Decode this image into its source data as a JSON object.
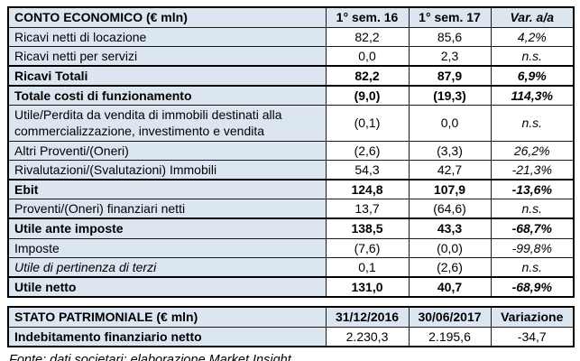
{
  "colors": {
    "header_bg": "#dce6f1",
    "label_bg": "#dce6f1",
    "value_bg": "#ffffff",
    "border": "#000000",
    "text": "#000000"
  },
  "tables": [
    {
      "title": "CONTO ECONOMICO (€ mln)",
      "columns": [
        "1° sem. 16",
        "1° sem. 17",
        "Var. a/a"
      ],
      "rows": [
        {
          "label": "Ricavi netti di locazione",
          "v1": "82,2",
          "v2": "85,6",
          "var": "4,2%",
          "style": "normal"
        },
        {
          "label": "Ricavi netti per servizi",
          "v1": "0,0",
          "v2": "2,3",
          "var": "n.s.",
          "style": "normal"
        },
        {
          "label": "Ricavi Totali",
          "v1": "82,2",
          "v2": "87,9",
          "var": "6,9%",
          "style": "total"
        },
        {
          "label": "Totale costi di funzionamento",
          "v1": "(9,0)",
          "v2": "(19,3)",
          "var": "114,3%",
          "style": "total"
        },
        {
          "label": "Utile/Perdita da vendita di immobili destinati alla commercializzazione, investimento e vendita",
          "v1": "(0,1)",
          "v2": "0,0",
          "var": "n.s.",
          "style": "normal"
        },
        {
          "label": "Altri Proventi/(Oneri)",
          "v1": "(2,6)",
          "v2": "(3,3)",
          "var": "26,2%",
          "style": "normal"
        },
        {
          "label": "Rivalutazioni/(Svalutazioni) Immobili",
          "v1": "54,3",
          "v2": "42,7",
          "var": "-21,3%",
          "style": "normal"
        },
        {
          "label": "Ebit",
          "v1": "124,8",
          "v2": "107,9",
          "var": "-13,6%",
          "style": "total"
        },
        {
          "label": "Proventi/(Oneri) finanziari netti",
          "v1": "13,7",
          "v2": "(64,6)",
          "var": "n.s.",
          "style": "normal"
        },
        {
          "label": "Utile ante imposte",
          "v1": "138,5",
          "v2": "43,3",
          "var": "-68,7%",
          "style": "total"
        },
        {
          "label": "Imposte",
          "v1": "(7,6)",
          "v2": "(0,0)",
          "var": "-99,8%",
          "style": "normal"
        },
        {
          "label": "Utile di pertinenza di terzi",
          "v1": "0,1",
          "v2": "(2,6)",
          "var": "n.s.",
          "style": "italic"
        },
        {
          "label": "Utile netto",
          "v1": "131,0",
          "v2": "40,7",
          "var": "-68,9%",
          "style": "total"
        }
      ]
    },
    {
      "title": "STATO PATRIMONIALE (€ mln)",
      "columns": [
        "31/12/2016",
        "30/06/2017",
        "Variazione"
      ],
      "rows": [
        {
          "label": "Indebitamento finanziario netto",
          "v1": "2.230,3",
          "v2": "2.195,6",
          "var": "-34,7",
          "style": "bold-label"
        }
      ]
    }
  ],
  "footer": "Fonte: dati societari; elaborazione Market Insight"
}
